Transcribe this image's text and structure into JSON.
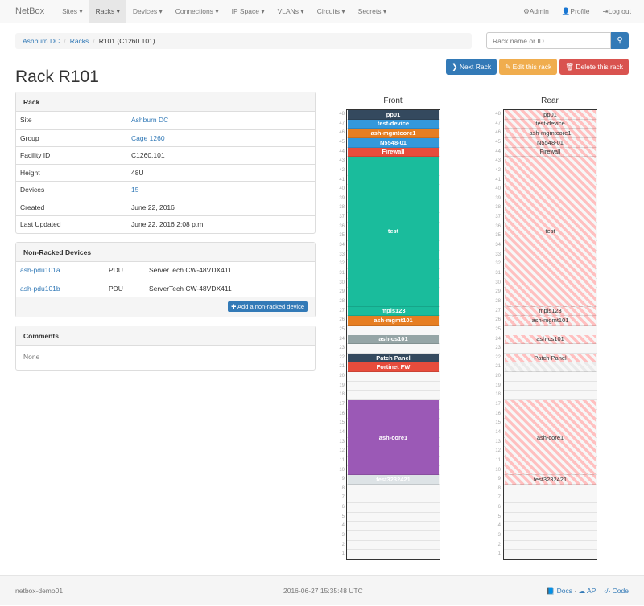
{
  "nav": {
    "brand": "NetBox",
    "items": [
      "Sites ▾",
      "Racks ▾",
      "Devices ▾",
      "Connections ▾",
      "IP Space ▾",
      "VLANs ▾",
      "Circuits ▾",
      "Secrets ▾"
    ],
    "active": 1,
    "right": [
      {
        "icon": "gear-icon",
        "glyph": "⚙",
        "label": "Admin"
      },
      {
        "icon": "user-icon",
        "glyph": "👤",
        "label": "Profile"
      },
      {
        "icon": "log-out-icon",
        "glyph": "⇥",
        "label": "Log out"
      }
    ]
  },
  "breadcrumb": [
    "Ashburn DC",
    "Racks",
    "R101 (C1260.101)"
  ],
  "search": {
    "placeholder": "Rack name or ID"
  },
  "buttons": {
    "next": "❯ Next Rack",
    "edit": "✎ Edit this rack",
    "delete": "🗑 Delete this rack"
  },
  "colors": {
    "next": "#337ab7",
    "edit": "#f0ad4e",
    "delete": "#d9534f"
  },
  "title": "Rack R101",
  "rack_panel": {
    "heading": "Rack",
    "rows": [
      {
        "k": "Site",
        "v": "Ashburn DC",
        "link": true
      },
      {
        "k": "Group",
        "v": "Cage 1260",
        "link": true
      },
      {
        "k": "Facility ID",
        "v": "C1260.101"
      },
      {
        "k": "Height",
        "v": "48U"
      },
      {
        "k": "Devices",
        "v": "15",
        "link": true
      },
      {
        "k": "Created",
        "v": "June 22, 2016"
      },
      {
        "k": "Last Updated",
        "v": "June 22, 2016 2:08 p.m."
      }
    ]
  },
  "nonracked": {
    "heading": "Non-Racked Devices",
    "rows": [
      {
        "name": "ash-pdu101a",
        "role": "PDU",
        "type": "ServerTech CW-48VDX411"
      },
      {
        "name": "ash-pdu101b",
        "role": "PDU",
        "type": "ServerTech CW-48VDX411"
      }
    ],
    "add": "✚ Add a non-racked device"
  },
  "comments": {
    "heading": "Comments",
    "text": "None"
  },
  "rack": {
    "units": 48,
    "front_label": "Front",
    "rear_label": "Rear",
    "devices": [
      {
        "name": "pp01",
        "position": 48,
        "height": 1,
        "color": "#34495e"
      },
      {
        "name": "test-device",
        "position": 47,
        "height": 1,
        "color": "#3498db"
      },
      {
        "name": "ash-mgmtcore1",
        "position": 46,
        "height": 1,
        "color": "#e67e22"
      },
      {
        "name": "N5548-01",
        "position": 45,
        "height": 1,
        "color": "#3498db"
      },
      {
        "name": "Firewall",
        "position": 44,
        "height": 1,
        "color": "#e74c3c"
      },
      {
        "name": "test",
        "position": 28,
        "height": 16,
        "color": "#1abc9c"
      },
      {
        "name": "mpls123",
        "position": 27,
        "height": 1,
        "color": "#1abc9c"
      },
      {
        "name": "ash-mgmt101",
        "position": 26,
        "height": 1,
        "color": "#e67e22"
      },
      {
        "name": "ash-cs101",
        "position": 24,
        "height": 1,
        "color": "#95a5a6"
      },
      {
        "name": "Patch Panel",
        "position": 22,
        "height": 1,
        "color": "#34495e"
      },
      {
        "name": "Fortinet FW",
        "position": 21,
        "height": 1,
        "color": "#e74c3c",
        "front_only": true
      },
      {
        "name": "ash-core1",
        "position": 10,
        "height": 8,
        "color": "#9b59b6"
      },
      {
        "name": "test3232421",
        "position": 9,
        "height": 1,
        "color": "#dde3e6"
      }
    ]
  },
  "footer": {
    "host": "netbox-demo01",
    "time": "2016-06-27 15:35:48 UTC",
    "links": [
      {
        "icon": "book-icon",
        "glyph": "📘",
        "label": "Docs"
      },
      {
        "icon": "cloud-icon",
        "glyph": "☁",
        "label": "API"
      },
      {
        "icon": "code-icon",
        "glyph": "‹/›",
        "label": "Code"
      }
    ]
  }
}
